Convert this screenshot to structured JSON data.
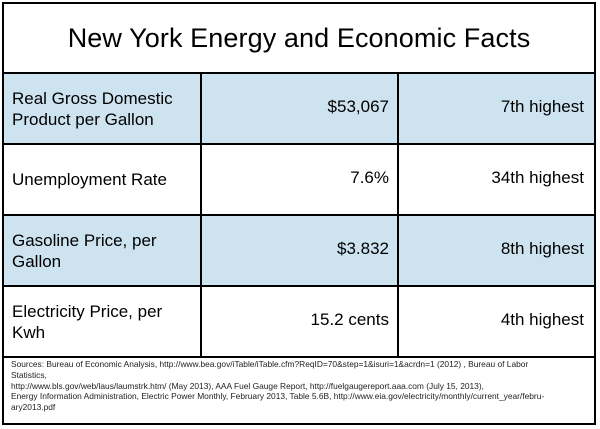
{
  "title": "New York Energy and Economic Facts",
  "rows": [
    {
      "label": "Real Gross Domestic Product per Gallon",
      "value": "$53,067",
      "rank": "7th highest"
    },
    {
      "label": "Unemployment Rate",
      "value": "7.6%",
      "rank": "34th highest"
    },
    {
      "label": "Gasoline Price, per Gallon",
      "value": "$3.832",
      "rank": "8th highest"
    },
    {
      "label": "Electricity Price, per Kwh",
      "value": "15.2 cents",
      "rank": "4th highest"
    }
  ],
  "sources": [
    "Sources: Bureau of Economic Analysis, http://www.bea.gov/iTable/iTable.cfm?ReqID=70&step=1&isuri=1&acrdn=1 (2012) , Bureau of Labor",
    "Statistics,",
    "http://www.bls.gov/web/laus/laumstrk.htm/ (May 2013), AAA Fuel Gauge Report, http://fuelgaugereport.aaa.com  (July 15, 2013),",
    "Energy Information Administration, Electric Power Monthly, February 2013, Table 5.6B, http://www.eia.gov/electricity/monthly/current_year/febru-",
    "ary2013.pdf"
  ],
  "colors": {
    "shaded_row": "#cde3f0",
    "border": "#000000"
  }
}
